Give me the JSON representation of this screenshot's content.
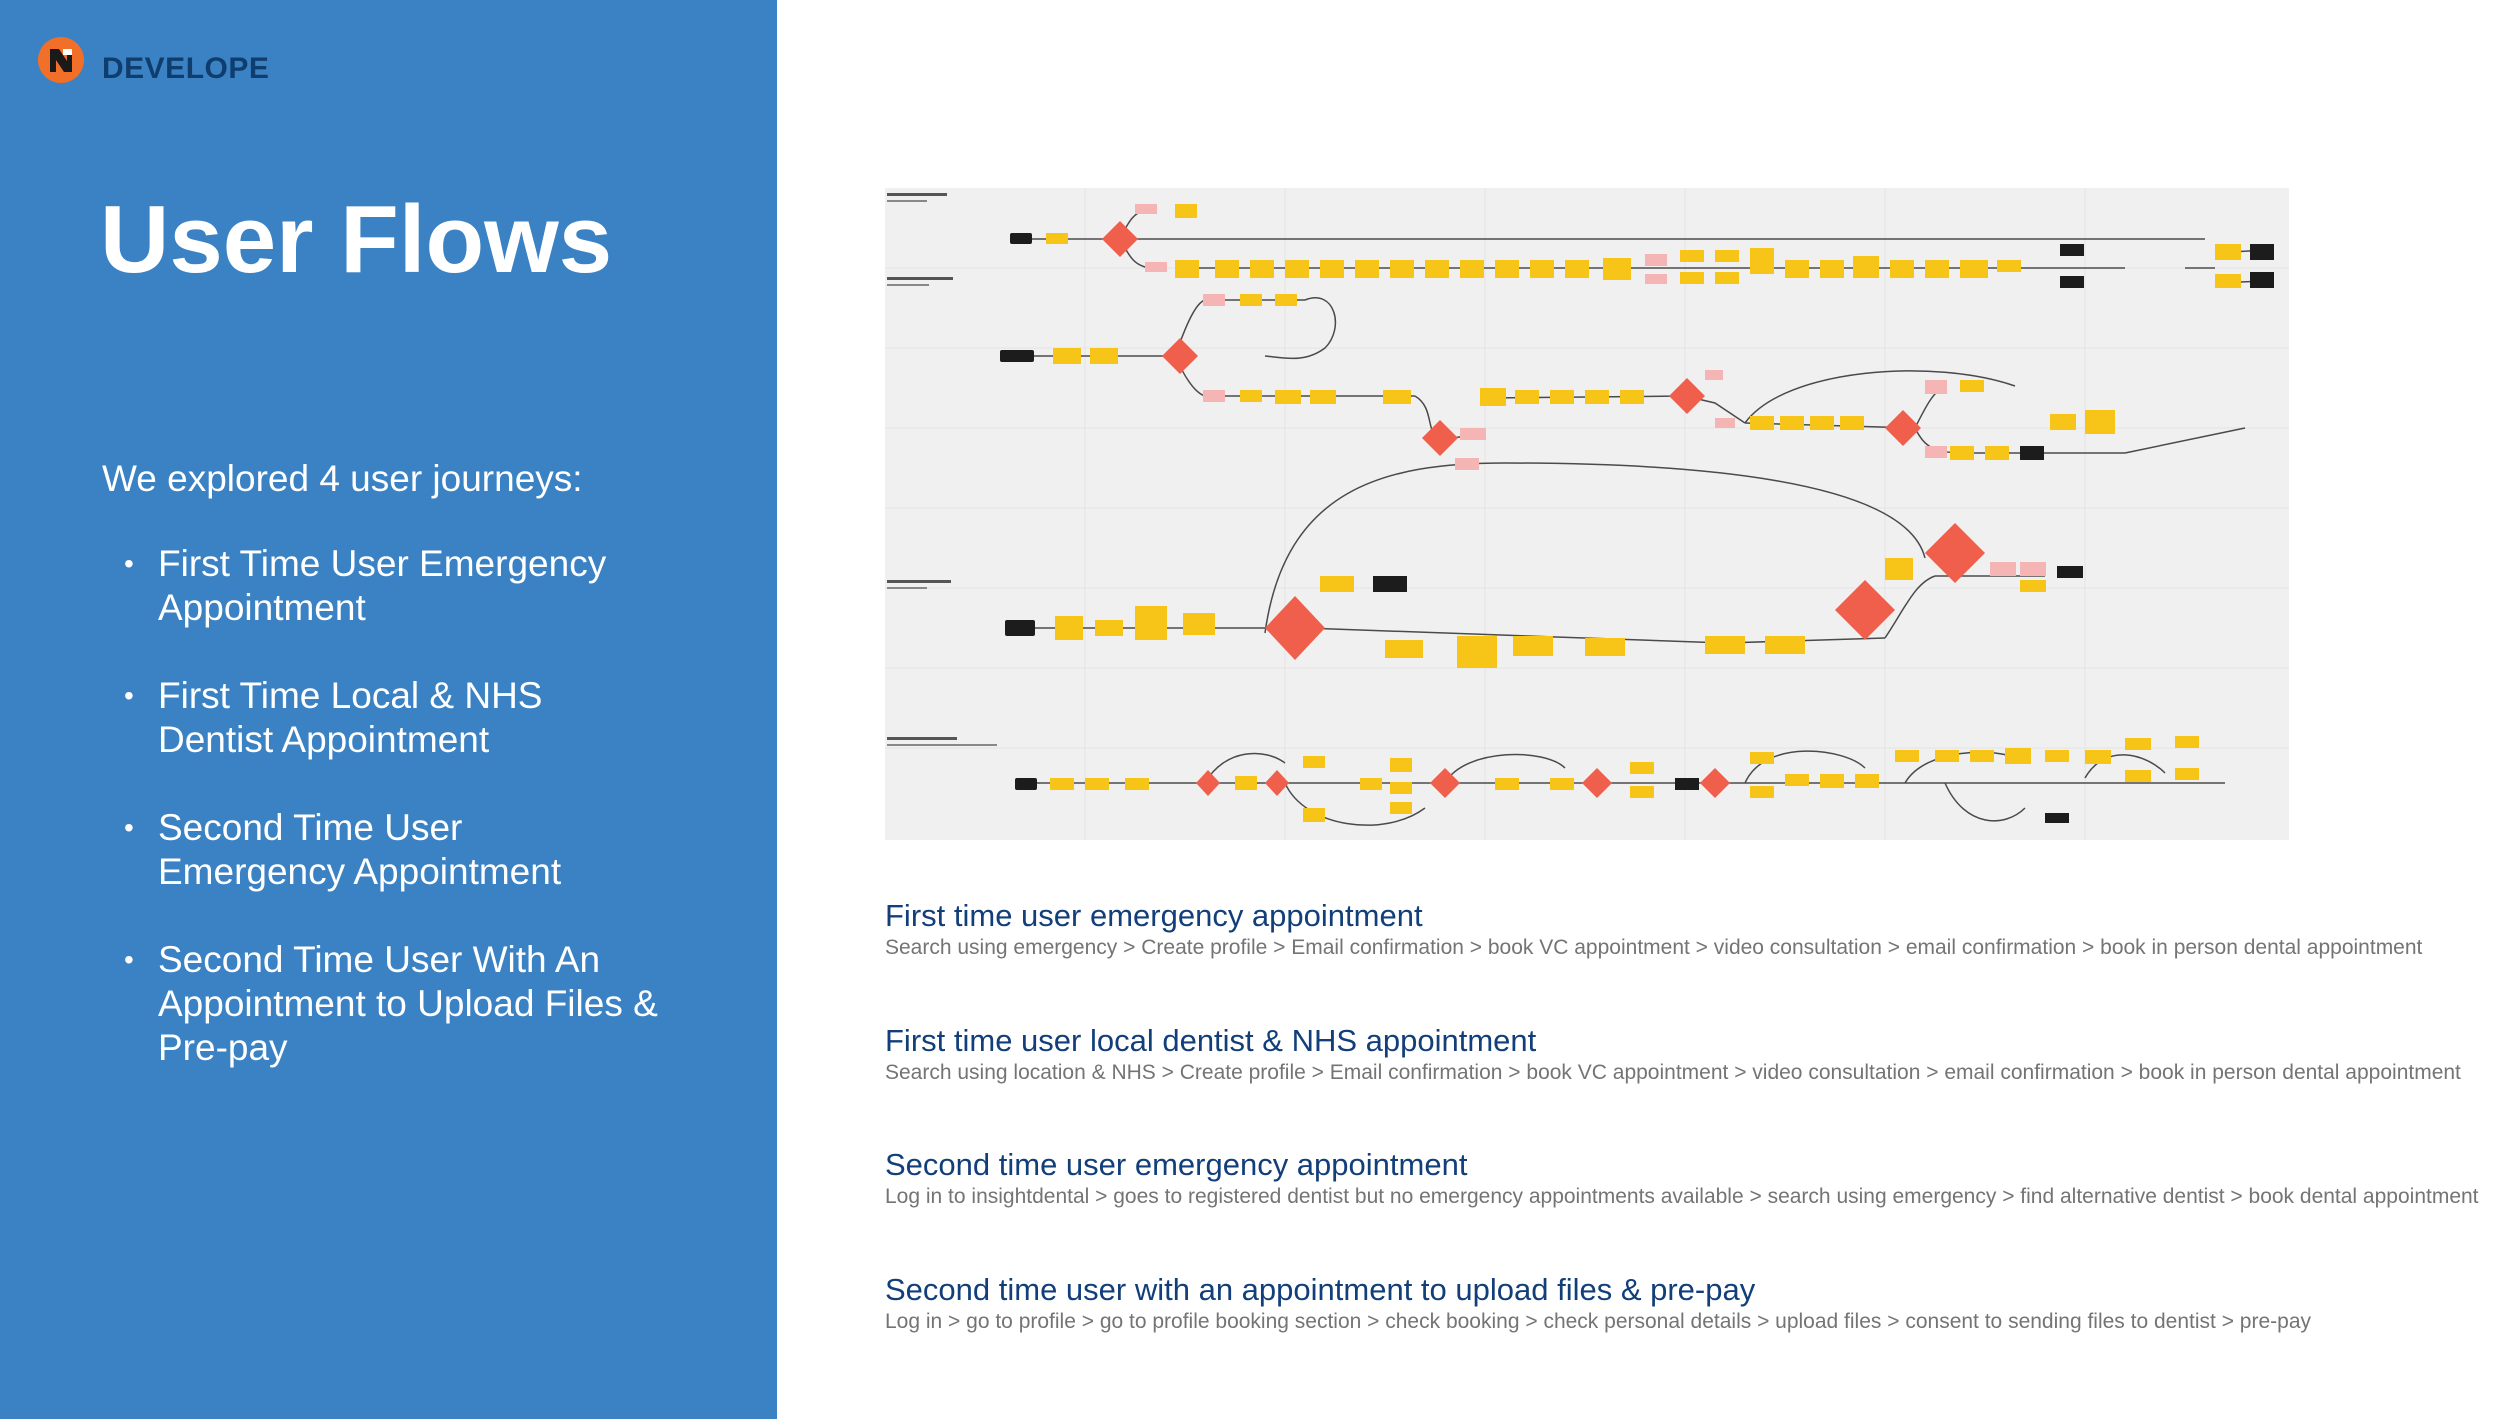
{
  "brand": {
    "name": "DEVELOPE",
    "logo_icon": "brand-logo-icon",
    "logo_color": "#f26f2a"
  },
  "slide": {
    "title": "User Flows",
    "intro": "We explored 4 user journeys:",
    "journeys": [
      "First Time User Emergency Appointment",
      "First Time Local & NHS Dentist Appointment",
      "Second Time User Emergency Appointment",
      "Second Time User With An Appointment to Upload Files & Pre-pay"
    ]
  },
  "flows": [
    {
      "title": "First time user emergency appointment",
      "steps": "Search using emergency > Create profile > Email confirmation > book VC appointment > video consultation > email confirmation > book in person dental appointment"
    },
    {
      "title": "First time user local dentist & NHS appointment",
      "steps": "Search using location & NHS > Create profile > Email confirmation > book VC appointment > video consultation > email confirmation > book in person dental appointment"
    },
    {
      "title": "Second time user emergency appointment",
      "steps": "Log in to insightdental > goes to registered dentist but no emergency appointments available > search using emergency > find alternative dentist > book dental appointment"
    },
    {
      "title": "Second time user with an appointment to upload files & pre-pay",
      "steps": "Log in > go to profile > go to profile booking section > check booking > check personal details > upload files > consent to sending files to dentist > pre-pay"
    }
  ],
  "colors": {
    "panel": "#3b82c4",
    "flow_title": "#123f7a",
    "flow_steps": "#747474",
    "step_node": "#f7c518",
    "decision_node": "#ef5f4b",
    "alt_node": "#f5b5b5",
    "terminal_node": "#1c1c1c",
    "canvas": "#f0f0f0"
  }
}
